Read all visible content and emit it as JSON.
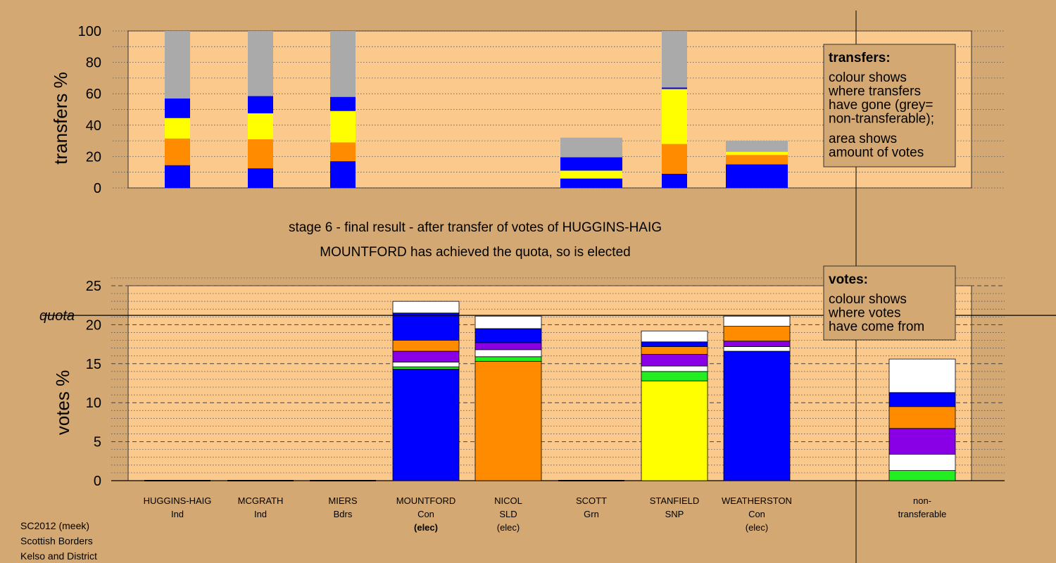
{
  "colors": {
    "page_bg": "#d4a872",
    "plot_bg": "#fcc98c",
    "grey": "#aaaaaa",
    "blue": "#0000ff",
    "yellow": "#ffff00",
    "orange": "#ff8c00",
    "purple": "#8a00e6",
    "green": "#22ee22",
    "white": "#ffffff"
  },
  "top_axis_label": "transfers %",
  "bottom_axis_label": "votes %",
  "quota_label": "quota",
  "stage_title": "stage 6 - final result - after transfer of votes of HUGGINS-HAIG",
  "stage_subtitle": "MOUNTFORD has achieved the quota, so is elected",
  "legend_transfers": {
    "title": "transfers:",
    "lines1": [
      "colour shows",
      "where transfers",
      "have gone (grey=",
      "non-transferable);"
    ],
    "lines2": [
      "area shows",
      "amount of votes"
    ]
  },
  "legend_votes": {
    "title": "votes:",
    "lines": [
      "colour shows",
      "where votes",
      "have come from"
    ]
  },
  "footer": [
    "SC2012 (meek)",
    "Scottish Borders",
    "Kelso and District"
  ],
  "categories": [
    {
      "name": "HUGGINS-HAIG",
      "party": "Ind",
      "status": ""
    },
    {
      "name": "MCGRATH",
      "party": "Ind",
      "status": ""
    },
    {
      "name": "MIERS",
      "party": "Bdrs",
      "status": ""
    },
    {
      "name": "MOUNTFORD",
      "party": "Con",
      "status": "(elec)"
    },
    {
      "name": "NICOL",
      "party": "SLD",
      "status": "(elec)"
    },
    {
      "name": "SCOTT",
      "party": "Grn",
      "status": ""
    },
    {
      "name": "STANFIELD",
      "party": "SNP",
      "status": ""
    },
    {
      "name": "WEATHERSTON",
      "party": "Con",
      "status": "(elec)"
    },
    {
      "name": "non-",
      "party": "transferable",
      "status": ""
    }
  ],
  "chart_data": [
    {
      "type": "bar",
      "stacked": true,
      "title": "",
      "ylabel": "transfers %",
      "ylim": [
        0,
        100
      ],
      "yticks": [
        0,
        20,
        40,
        60,
        80,
        100
      ],
      "grid": "dotted",
      "bars": [
        {
          "category": "HUGGINS-HAIG",
          "segments": [
            {
              "color": "blue",
              "value": 14.5
            },
            {
              "color": "orange",
              "value": 17
            },
            {
              "color": "yellow",
              "value": 13
            },
            {
              "color": "blue",
              "value": 12.5
            },
            {
              "color": "grey",
              "value": 43
            }
          ]
        },
        {
          "category": "MCGRATH",
          "segments": [
            {
              "color": "blue",
              "value": 12.5
            },
            {
              "color": "orange",
              "value": 18.5
            },
            {
              "color": "yellow",
              "value": 16.5
            },
            {
              "color": "blue",
              "value": 11
            },
            {
              "color": "grey",
              "value": 41.5
            }
          ]
        },
        {
          "category": "MIERS",
          "segments": [
            {
              "color": "blue",
              "value": 17
            },
            {
              "color": "orange",
              "value": 12
            },
            {
              "color": "yellow",
              "value": 20
            },
            {
              "color": "blue",
              "value": 9
            },
            {
              "color": "grey",
              "value": 42
            }
          ]
        },
        {
          "category": "SCOTT",
          "wide": true,
          "segments": [
            {
              "color": "blue",
              "value": 6
            },
            {
              "color": "yellow",
              "value": 5
            },
            {
              "color": "blue",
              "value": 8.5
            },
            {
              "color": "grey",
              "value": 12.5
            }
          ]
        },
        {
          "category": "STANFIELD",
          "segments": [
            {
              "color": "blue",
              "value": 9
            },
            {
              "color": "orange",
              "value": 19
            },
            {
              "color": "yellow",
              "value": 35
            },
            {
              "color": "blue",
              "value": 1
            },
            {
              "color": "grey",
              "value": 36
            }
          ]
        },
        {
          "category": "WEATHERSTON",
          "wide": true,
          "segments": [
            {
              "color": "blue",
              "value": 15
            },
            {
              "color": "orange",
              "value": 6
            },
            {
              "color": "yellow",
              "value": 2
            },
            {
              "color": "grey",
              "value": 7
            }
          ]
        }
      ]
    },
    {
      "type": "bar",
      "stacked": true,
      "title": "",
      "ylabel": "votes %",
      "ylim": [
        0,
        25
      ],
      "yticks": [
        0,
        5,
        10,
        15,
        20,
        25
      ],
      "quota": 21.2,
      "grid": "dashed",
      "bars": [
        {
          "category": "HUGGINS-HAIG",
          "segments": []
        },
        {
          "category": "MCGRATH",
          "segments": []
        },
        {
          "category": "MIERS",
          "segments": []
        },
        {
          "category": "MOUNTFORD",
          "segments": [
            {
              "color": "blue",
              "value": 14.3
            },
            {
              "color": "green",
              "value": 0.3
            },
            {
              "color": "white",
              "value": 0.6
            },
            {
              "color": "purple",
              "value": 1.4
            },
            {
              "color": "orange",
              "value": 1.4
            },
            {
              "color": "blue",
              "value": 3.5
            },
            {
              "color": "white",
              "value": 1.5
            }
          ]
        },
        {
          "category": "NICOL",
          "segments": [
            {
              "color": "orange",
              "value": 15.3
            },
            {
              "color": "green",
              "value": 0.6
            },
            {
              "color": "white",
              "value": 0.9
            },
            {
              "color": "purple",
              "value": 0.9
            },
            {
              "color": "blue",
              "value": 1.8
            },
            {
              "color": "white",
              "value": 1.6
            }
          ]
        },
        {
          "category": "SCOTT",
          "segments": []
        },
        {
          "category": "STANFIELD",
          "segments": [
            {
              "color": "yellow",
              "value": 12.8
            },
            {
              "color": "green",
              "value": 1.2
            },
            {
              "color": "white",
              "value": 0.7
            },
            {
              "color": "purple",
              "value": 1.5
            },
            {
              "color": "orange",
              "value": 1.0
            },
            {
              "color": "blue",
              "value": 0.6
            },
            {
              "color": "white",
              "value": 1.4
            }
          ]
        },
        {
          "category": "WEATHERSTON",
          "segments": [
            {
              "color": "blue",
              "value": 16.6
            },
            {
              "color": "white",
              "value": 0.6
            },
            {
              "color": "purple",
              "value": 0.7
            },
            {
              "color": "orange",
              "value": 1.9
            },
            {
              "color": "white",
              "value": 1.3
            }
          ]
        },
        {
          "category": "non-transferable",
          "segments": [
            {
              "color": "green",
              "value": 1.3
            },
            {
              "color": "white",
              "value": 2.1
            },
            {
              "color": "purple",
              "value": 3.3
            },
            {
              "color": "orange",
              "value": 2.8
            },
            {
              "color": "blue",
              "value": 1.8
            },
            {
              "color": "white",
              "value": 4.3
            }
          ]
        }
      ]
    }
  ]
}
